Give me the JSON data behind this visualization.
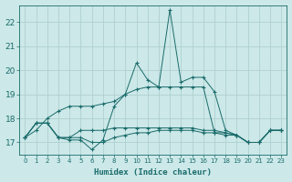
{
  "xlabel": "Humidex (Indice chaleur)",
  "x": [
    0,
    1,
    2,
    3,
    4,
    5,
    6,
    7,
    8,
    9,
    10,
    11,
    12,
    13,
    14,
    15,
    16,
    17,
    18,
    19,
    20,
    21,
    22,
    23
  ],
  "line1": [
    17.2,
    17.8,
    17.8,
    17.2,
    17.1,
    17.1,
    16.7,
    17.1,
    18.5,
    19.0,
    20.3,
    19.6,
    19.3,
    22.5,
    19.5,
    19.7,
    19.7,
    19.1,
    17.5,
    17.3,
    17.0,
    17.0,
    17.5,
    17.5
  ],
  "line2": [
    17.2,
    17.5,
    18.0,
    18.3,
    18.5,
    18.5,
    18.5,
    18.6,
    18.7,
    19.0,
    19.2,
    19.3,
    19.3,
    19.3,
    19.3,
    19.3,
    19.3,
    17.4,
    17.4,
    17.3,
    17.0,
    17.0,
    17.5,
    17.5
  ],
  "line3": [
    17.2,
    17.8,
    17.8,
    17.2,
    17.2,
    17.5,
    17.5,
    17.5,
    17.6,
    17.6,
    17.6,
    17.6,
    17.6,
    17.6,
    17.6,
    17.6,
    17.5,
    17.5,
    17.4,
    17.3,
    17.0,
    17.0,
    17.5,
    17.5
  ],
  "line4": [
    17.2,
    17.8,
    17.8,
    17.2,
    17.2,
    17.2,
    17.0,
    17.0,
    17.2,
    17.3,
    17.4,
    17.4,
    17.5,
    17.5,
    17.5,
    17.5,
    17.4,
    17.4,
    17.3,
    17.3,
    17.0,
    17.0,
    17.5,
    17.5
  ],
  "bg_color": "#cce8e8",
  "line_color": "#1a6b6b",
  "grid_color": "#aacccc",
  "ylim": [
    16.5,
    22.7
  ],
  "yticks": [
    17,
    18,
    19,
    20,
    21,
    22
  ],
  "xticks": [
    0,
    1,
    2,
    3,
    4,
    5,
    6,
    7,
    8,
    9,
    10,
    11,
    12,
    13,
    14,
    15,
    16,
    17,
    18,
    19,
    20,
    21,
    22,
    23
  ]
}
